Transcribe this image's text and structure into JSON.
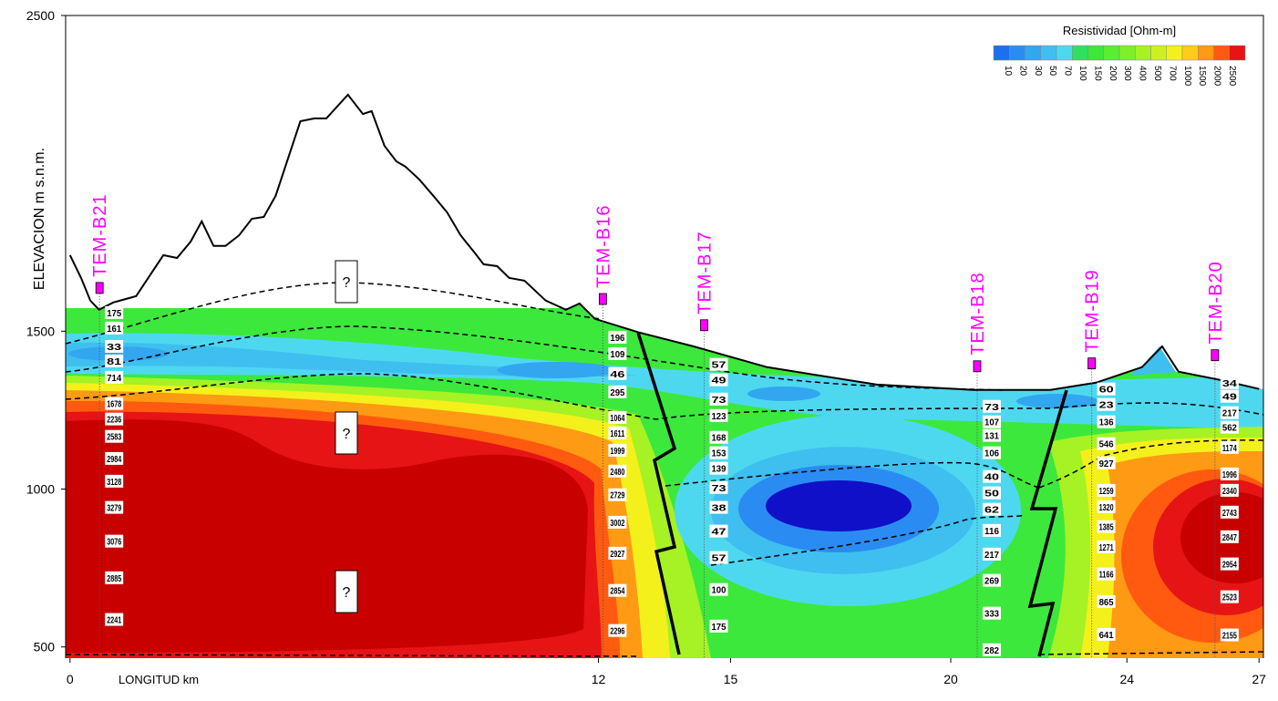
{
  "chart_data": {
    "type": "section",
    "x_label": "LONGITUD km",
    "y_label": "ELEVACION m s.n.m.",
    "xlim": [
      -0.1,
      27.1
    ],
    "xticks": [
      0,
      12,
      15,
      20,
      24,
      27
    ],
    "ylim": [
      450,
      2500
    ],
    "yticks": [
      500,
      1000,
      1500,
      2500
    ],
    "topography": {
      "x": [
        0,
        0.25,
        0.46,
        0.66,
        0.98,
        1.5,
        2.12,
        2.43,
        2.74,
        2.99,
        3.26,
        3.53,
        3.84,
        4.13,
        4.4,
        4.67,
        5.23,
        5.55,
        5.82,
        6.31,
        6.65,
        6.85,
        7.14,
        7.41,
        7.62,
        7.93,
        8.25,
        8.56,
        8.87,
        9.18,
        9.39,
        9.7,
        9.97,
        10.32,
        10.8,
        11.26,
        11.57,
        11.92,
        12.92,
        14.16,
        15.83,
        18.32,
        20.52,
        22.26,
        23.3,
        24.34,
        24.8,
        25.17,
        26.21,
        27
      ],
      "values": [
        1741,
        1669,
        1597,
        1568,
        1591,
        1611,
        1741,
        1732,
        1784,
        1848,
        1770,
        1770,
        1804,
        1856,
        1862,
        1929,
        2165,
        2174,
        2174,
        2249,
        2188,
        2197,
        2087,
        2038,
        2021,
        1981,
        1929,
        1877,
        1804,
        1750,
        1712,
        1706,
        1669,
        1660,
        1597,
        1568,
        1588,
        1539,
        1496,
        1452,
        1386,
        1331,
        1314,
        1314,
        1337,
        1386,
        1452,
        1372,
        1343,
        1317
      ]
    },
    "colorbar": {
      "title": "Resistividad [Ohm-m]",
      "ticks": [
        10,
        20,
        30,
        50,
        70,
        100,
        150,
        200,
        300,
        400,
        500,
        700,
        1000,
        1500,
        2000,
        2500
      ],
      "colors": [
        "#1e6ff0",
        "#2a8cf2",
        "#33a6f0",
        "#3fbff0",
        "#4ed8f0",
        "#2fe060",
        "#3ce83c",
        "#5aee30",
        "#7ef02a",
        "#a6f224",
        "#cff020",
        "#f4f01c",
        "#ffcc18",
        "#ff9a14",
        "#ff5a10",
        "#e61414"
      ]
    },
    "stations": [
      {
        "name": "TEM-B21",
        "x": 0.67,
        "elevation": 1637,
        "values": [
          175,
          161,
          33,
          81,
          714,
          1678,
          2236,
          2583,
          2984,
          3128,
          3279,
          3076,
          2885,
          2241
        ],
        "value_elevations": [
          1559,
          1510,
          1452,
          1406,
          1354,
          1271,
          1222,
          1167,
          1097,
          1025,
          942,
          835,
          719,
          587
        ]
      },
      {
        "name": "TEM-B16",
        "x": 12.1,
        "elevation": 1602,
        "values": [
          196,
          109,
          46,
          295,
          1064,
          1611,
          1999,
          2480,
          2729,
          3002,
          2927,
          2854,
          2296
        ],
        "value_elevations": [
          1481,
          1429,
          1366,
          1308,
          1227,
          1178,
          1123,
          1057,
          982,
          895,
          797,
          679,
          552
        ]
      },
      {
        "name": "TEM-B17",
        "x": 14.4,
        "elevation": 1519,
        "values": [
          57,
          49,
          73,
          123,
          168,
          153,
          139,
          73,
          38,
          47,
          57,
          100,
          175
        ],
        "value_elevations": [
          1395,
          1346,
          1285,
          1233,
          1164,
          1115,
          1066,
          1005,
          942,
          867,
          783,
          682,
          566
        ]
      },
      {
        "name": "TEM-B18",
        "x": 20.6,
        "elevation": 1389,
        "values": [
          73,
          107,
          131,
          106,
          40,
          50,
          62,
          116,
          217,
          269,
          333,
          282
        ],
        "value_elevations": [
          1262,
          1213,
          1170,
          1115,
          1040,
          988,
          936,
          869,
          794,
          711,
          607,
          491
        ]
      },
      {
        "name": "TEM-B19",
        "x": 23.2,
        "elevation": 1398,
        "values": [
          60,
          23,
          136,
          546,
          927,
          1259,
          1320,
          1385,
          1271,
          1166,
          865,
          641
        ],
        "value_elevations": [
          1317,
          1268,
          1213,
          1144,
          1083,
          996,
          944,
          881,
          817,
          731,
          644,
          540
        ]
      },
      {
        "name": "TEM-B20",
        "x": 26.0,
        "elevation": 1424,
        "values": [
          34,
          49,
          217,
          562,
          1174,
          1996,
          2340,
          2743,
          2847,
          2954,
          2523,
          2155
        ],
        "value_elevations": [
          1337,
          1294,
          1242,
          1196,
          1132,
          1048,
          996,
          927,
          849,
          763,
          659,
          538
        ]
      }
    ],
    "annotations": [
      "?",
      "?",
      "?"
    ]
  }
}
